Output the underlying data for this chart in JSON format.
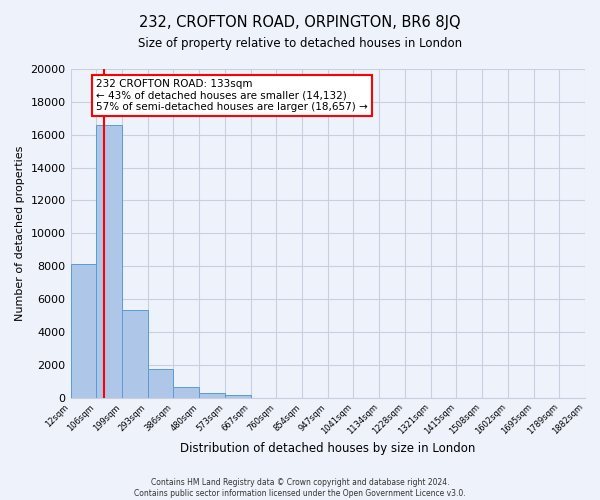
{
  "title": "232, CROFTON ROAD, ORPINGTON, BR6 8JQ",
  "subtitle": "Size of property relative to detached houses in London",
  "xlabel": "Distribution of detached houses by size in London",
  "ylabel": "Number of detached properties",
  "bin_labels": [
    "12sqm",
    "106sqm",
    "199sqm",
    "293sqm",
    "386sqm",
    "480sqm",
    "573sqm",
    "667sqm",
    "760sqm",
    "854sqm",
    "947sqm",
    "1041sqm",
    "1134sqm",
    "1228sqm",
    "1321sqm",
    "1415sqm",
    "1508sqm",
    "1602sqm",
    "1695sqm",
    "1789sqm",
    "1882sqm"
  ],
  "bar_values": [
    8100,
    16600,
    5300,
    1750,
    650,
    300,
    150,
    0,
    0,
    0,
    0,
    0,
    0,
    0,
    0,
    0,
    0,
    0,
    0,
    0
  ],
  "bar_color": "#aec6e8",
  "bar_edge_color": "#5b9bd5",
  "vline_color": "red",
  "annotation_text": "232 CROFTON ROAD: 133sqm\n← 43% of detached houses are smaller (14,132)\n57% of semi-detached houses are larger (18,657) →",
  "annotation_box_color": "white",
  "annotation_box_edge": "red",
  "ylim": [
    0,
    20000
  ],
  "yticks": [
    0,
    2000,
    4000,
    6000,
    8000,
    10000,
    12000,
    14000,
    16000,
    18000,
    20000
  ],
  "footer_line1": "Contains HM Land Registry data © Crown copyright and database right 2024.",
  "footer_line2": "Contains public sector information licensed under the Open Government Licence v3.0.",
  "background_color": "#eef2fb",
  "grid_color": "#c8cfe0"
}
